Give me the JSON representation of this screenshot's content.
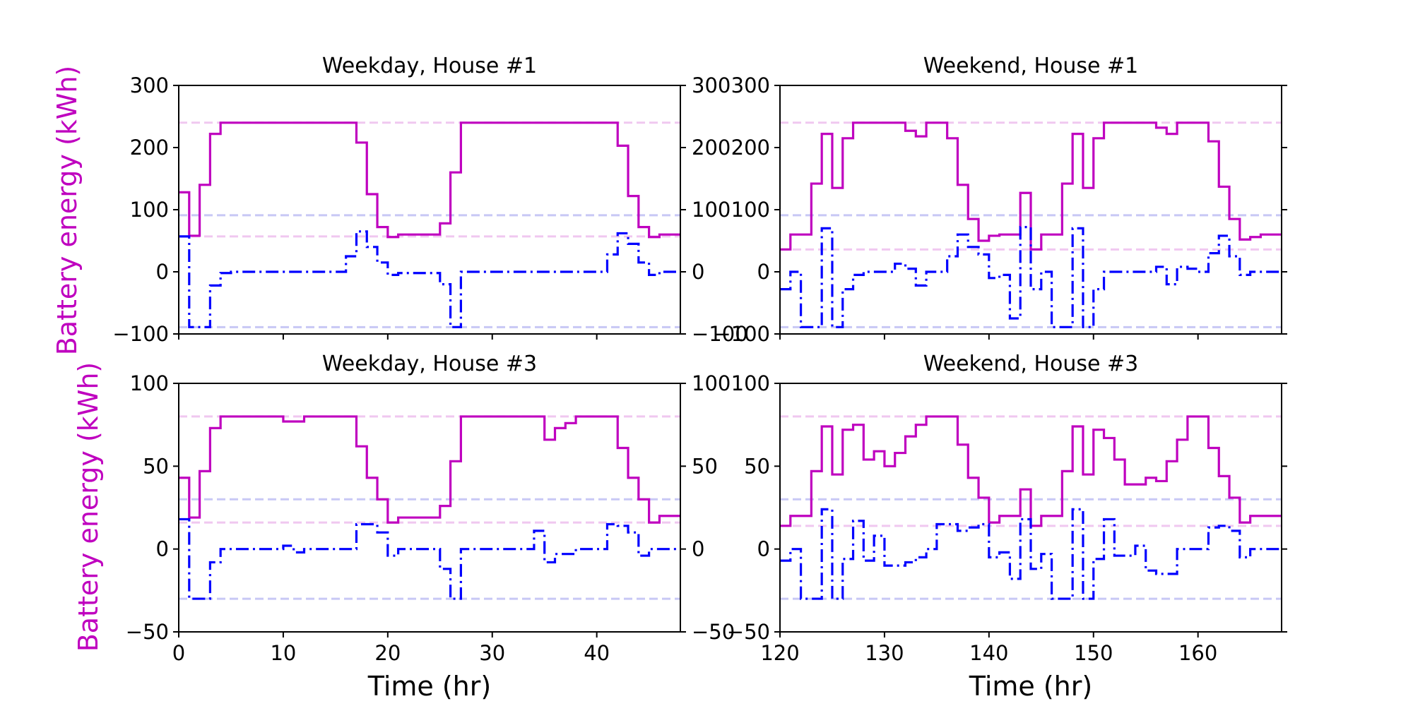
{
  "colors": {
    "energy": "#bf00bf",
    "power": "#0000ff",
    "energy_limit": "#f0c8f0",
    "power_limit": "#c8c8f5"
  },
  "chart_data": [
    {
      "type": "line",
      "title": "Weekday, House #1",
      "xlim": [
        0,
        48
      ],
      "xticks": [
        0,
        10,
        20,
        30,
        40
      ],
      "xlabel": "",
      "ylabel": "Battery energy (kWh)",
      "ylim": [
        -100,
        300
      ],
      "yticks": [
        -100,
        0,
        100,
        200,
        300
      ],
      "hlines": [
        {
          "y": 240,
          "kind": "energy"
        },
        {
          "y": 57,
          "kind": "energy"
        },
        {
          "y": 91,
          "kind": "power"
        },
        {
          "y": -89,
          "kind": "power"
        }
      ],
      "series": [
        {
          "style": "solid",
          "kind": "energy",
          "drawstyle": "steps-post",
          "x": [
            0,
            1,
            2,
            3,
            4,
            5,
            6,
            7,
            8,
            9,
            10,
            11,
            12,
            13,
            14,
            15,
            16,
            17,
            18,
            19,
            20,
            21,
            22,
            23,
            24,
            25,
            26,
            27,
            28,
            29,
            30,
            31,
            32,
            33,
            34,
            35,
            36,
            37,
            38,
            39,
            40,
            41,
            42,
            43,
            44,
            45,
            46,
            47,
            48
          ],
          "y": [
            128,
            58,
            140,
            222,
            240,
            240,
            240,
            240,
            240,
            240,
            240,
            240,
            240,
            240,
            240,
            240,
            240,
            208,
            125,
            72,
            56,
            60,
            60,
            60,
            60,
            78,
            160,
            240,
            240,
            240,
            240,
            240,
            240,
            240,
            240,
            240,
            240,
            240,
            240,
            240,
            240,
            240,
            203,
            122,
            72,
            56,
            60,
            60,
            60
          ]
        },
        {
          "style": "dashdot",
          "kind": "power",
          "drawstyle": "steps-post",
          "x": [
            0,
            1,
            2,
            3,
            4,
            5,
            6,
            7,
            8,
            9,
            10,
            11,
            12,
            13,
            14,
            15,
            16,
            17,
            18,
            19,
            20,
            21,
            22,
            23,
            24,
            25,
            26,
            27,
            28,
            29,
            30,
            31,
            32,
            33,
            34,
            35,
            36,
            37,
            38,
            39,
            40,
            41,
            42,
            43,
            44,
            45,
            46,
            47,
            48
          ],
          "y": [
            57,
            -89,
            -89,
            -22,
            -2,
            0,
            0,
            0,
            0,
            0,
            0,
            0,
            0,
            0,
            0,
            0,
            25,
            65,
            40,
            15,
            -5,
            -2,
            -2,
            -2,
            -2,
            -20,
            -89,
            0,
            0,
            0,
            0,
            0,
            0,
            0,
            0,
            0,
            0,
            0,
            0,
            0,
            0,
            28,
            62,
            45,
            15,
            -5,
            0,
            0,
            0
          ]
        }
      ]
    },
    {
      "type": "line",
      "title": "Weekend, House #1",
      "xlim": [
        120,
        168
      ],
      "xticks": [
        120,
        130,
        140,
        150,
        160
      ],
      "xlabel": "",
      "ylabel": "",
      "ylim": [
        -100,
        300
      ],
      "yticks": [
        -100,
        0,
        100,
        200,
        300
      ],
      "hlines": [
        {
          "y": 240,
          "kind": "energy"
        },
        {
          "y": 36,
          "kind": "energy"
        },
        {
          "y": 91,
          "kind": "power"
        },
        {
          "y": -89,
          "kind": "power"
        }
      ],
      "series": [
        {
          "style": "solid",
          "kind": "energy",
          "drawstyle": "steps-post",
          "x": [
            120,
            121,
            122,
            123,
            124,
            125,
            126,
            127,
            128,
            129,
            130,
            131,
            132,
            133,
            134,
            135,
            136,
            137,
            138,
            139,
            140,
            141,
            142,
            143,
            144,
            145,
            146,
            147,
            148,
            149,
            150,
            151,
            152,
            153,
            154,
            155,
            156,
            157,
            158,
            159,
            160,
            161,
            162,
            163,
            164,
            165,
            166,
            167,
            168
          ],
          "y": [
            36,
            60,
            60,
            142,
            222,
            135,
            215,
            240,
            240,
            240,
            240,
            240,
            227,
            218,
            240,
            240,
            215,
            140,
            85,
            50,
            58,
            60,
            60,
            127,
            36,
            60,
            60,
            142,
            222,
            135,
            215,
            240,
            240,
            240,
            240,
            240,
            232,
            222,
            240,
            240,
            240,
            210,
            137,
            85,
            52,
            56,
            60,
            60,
            60
          ]
        },
        {
          "style": "dashdot",
          "kind": "power",
          "drawstyle": "steps-post",
          "x": [
            120,
            121,
            122,
            123,
            124,
            125,
            126,
            127,
            128,
            129,
            130,
            131,
            132,
            133,
            134,
            135,
            136,
            137,
            138,
            139,
            140,
            141,
            142,
            143,
            144,
            145,
            146,
            147,
            148,
            149,
            150,
            151,
            152,
            153,
            154,
            155,
            156,
            157,
            158,
            159,
            160,
            161,
            162,
            163,
            164,
            165,
            166,
            167,
            168
          ],
          "y": [
            -28,
            0,
            -89,
            -89,
            70,
            -89,
            -28,
            -5,
            0,
            0,
            0,
            13,
            5,
            -22,
            0,
            0,
            25,
            60,
            40,
            28,
            -10,
            -5,
            -75,
            72,
            -28,
            0,
            -89,
            -89,
            70,
            -89,
            -28,
            0,
            0,
            0,
            0,
            0,
            8,
            -20,
            8,
            5,
            0,
            30,
            58,
            25,
            -5,
            0,
            0,
            0,
            0
          ]
        }
      ]
    },
    {
      "type": "line",
      "title": "Weekday, House #3",
      "xlim": [
        0,
        48
      ],
      "xticks": [
        0,
        10,
        20,
        30,
        40
      ],
      "xlabel": "Time (hr)",
      "ylabel": "Battery energy (kWh)",
      "ylim": [
        -50,
        100
      ],
      "yticks": [
        -50,
        0,
        50,
        100
      ],
      "hlines": [
        {
          "y": 80,
          "kind": "energy"
        },
        {
          "y": 16,
          "kind": "energy"
        },
        {
          "y": 30,
          "kind": "power"
        },
        {
          "y": -30,
          "kind": "power"
        }
      ],
      "series": [
        {
          "style": "solid",
          "kind": "energy",
          "drawstyle": "steps-post",
          "x": [
            0,
            1,
            2,
            3,
            4,
            5,
            6,
            7,
            8,
            9,
            10,
            11,
            12,
            13,
            14,
            15,
            16,
            17,
            18,
            19,
            20,
            21,
            22,
            23,
            24,
            25,
            26,
            27,
            28,
            29,
            30,
            31,
            32,
            33,
            34,
            35,
            36,
            37,
            38,
            39,
            40,
            41,
            42,
            43,
            44,
            45,
            46,
            47,
            48
          ],
          "y": [
            43,
            19,
            47,
            73,
            80,
            80,
            80,
            80,
            80,
            80,
            77,
            77,
            80,
            80,
            80,
            80,
            80,
            62,
            43,
            30,
            16,
            19,
            19,
            19,
            19,
            26,
            53,
            80,
            80,
            80,
            80,
            80,
            80,
            80,
            80,
            66,
            73,
            76,
            80,
            80,
            80,
            80,
            61,
            43,
            30,
            16,
            20,
            20,
            20
          ]
        },
        {
          "style": "dashdot",
          "kind": "power",
          "drawstyle": "steps-post",
          "x": [
            0,
            1,
            2,
            3,
            4,
            5,
            6,
            7,
            8,
            9,
            10,
            11,
            12,
            13,
            14,
            15,
            16,
            17,
            18,
            19,
            20,
            21,
            22,
            23,
            24,
            25,
            26,
            27,
            28,
            29,
            30,
            31,
            32,
            33,
            34,
            35,
            36,
            37,
            38,
            39,
            40,
            41,
            42,
            43,
            44,
            45,
            46,
            47,
            48
          ],
          "y": [
            18,
            -30,
            -30,
            -8,
            0,
            0,
            0,
            0,
            0,
            0,
            2,
            -2,
            0,
            0,
            0,
            0,
            0,
            15,
            15,
            10,
            -4,
            0,
            0,
            0,
            0,
            -12,
            -30,
            0,
            0,
            0,
            0,
            0,
            0,
            0,
            11,
            -8,
            -3,
            -3,
            0,
            0,
            0,
            15,
            14,
            10,
            -4,
            0,
            0,
            0,
            0
          ]
        }
      ]
    },
    {
      "type": "line",
      "title": "Weekend, House #3",
      "xlim": [
        120,
        168
      ],
      "xticks": [
        120,
        130,
        140,
        150,
        160
      ],
      "xlabel": "Time (hr)",
      "ylabel": "",
      "ylim": [
        -50,
        100
      ],
      "yticks": [
        -50,
        0,
        50,
        100
      ],
      "hlines": [
        {
          "y": 80,
          "kind": "energy"
        },
        {
          "y": 14,
          "kind": "energy"
        },
        {
          "y": 30,
          "kind": "power"
        },
        {
          "y": -30,
          "kind": "power"
        }
      ],
      "series": [
        {
          "style": "solid",
          "kind": "energy",
          "drawstyle": "steps-post",
          "x": [
            120,
            121,
            122,
            123,
            124,
            125,
            126,
            127,
            128,
            129,
            130,
            131,
            132,
            133,
            134,
            135,
            136,
            137,
            138,
            139,
            140,
            141,
            142,
            143,
            144,
            145,
            146,
            147,
            148,
            149,
            150,
            151,
            152,
            153,
            154,
            155,
            156,
            157,
            158,
            159,
            160,
            161,
            162,
            163,
            164,
            165,
            166,
            167,
            168
          ],
          "y": [
            14,
            20,
            20,
            47,
            74,
            45,
            72,
            75,
            54,
            59,
            50,
            58,
            68,
            75,
            80,
            80,
            80,
            63,
            43,
            31,
            16,
            20,
            20,
            36,
            14,
            20,
            20,
            47,
            74,
            45,
            72,
            67,
            54,
            39,
            39,
            43,
            41,
            53,
            66,
            80,
            80,
            61,
            44,
            31,
            16,
            20,
            20,
            20,
            20
          ]
        },
        {
          "style": "dashdot",
          "kind": "power",
          "drawstyle": "steps-post",
          "x": [
            120,
            121,
            122,
            123,
            124,
            125,
            126,
            127,
            128,
            129,
            130,
            131,
            132,
            133,
            134,
            135,
            136,
            137,
            138,
            139,
            140,
            141,
            142,
            143,
            144,
            145,
            146,
            147,
            148,
            149,
            150,
            151,
            152,
            153,
            154,
            155,
            156,
            157,
            158,
            159,
            160,
            161,
            162,
            163,
            164,
            165,
            166,
            167,
            168
          ],
          "y": [
            -7,
            0,
            -30,
            -30,
            24,
            -30,
            -6,
            17,
            -7,
            8,
            -10,
            -10,
            -8,
            -5,
            0,
            15,
            15,
            11,
            13,
            15,
            -5,
            -2,
            -18,
            18,
            -12,
            -3,
            -30,
            -30,
            24,
            -30,
            -6,
            18,
            -4,
            -4,
            2,
            -13,
            -15,
            -15,
            0,
            0,
            0,
            13,
            14,
            11,
            -5,
            0,
            0,
            0,
            0
          ]
        }
      ]
    }
  ]
}
